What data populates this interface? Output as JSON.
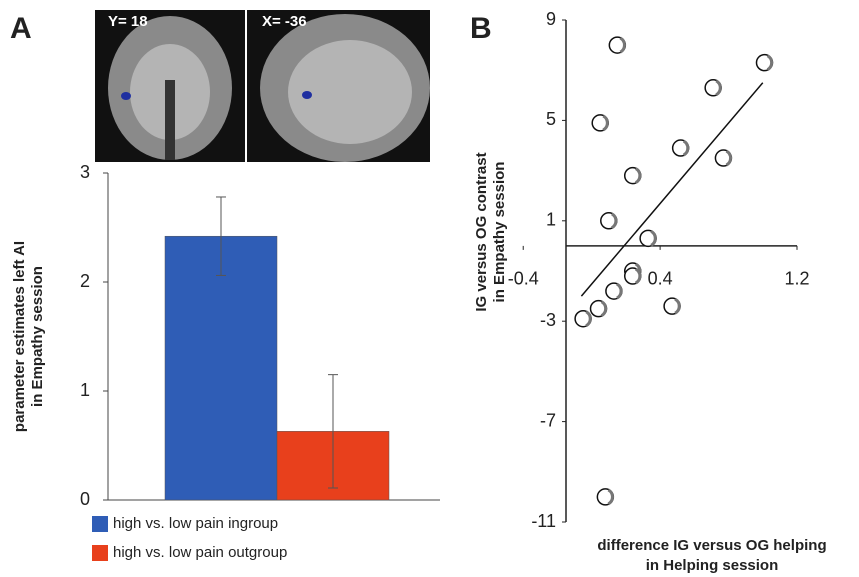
{
  "chart_data": [
    {
      "type": "bar",
      "panel_label": "A",
      "images": [
        {
          "label": "Y= 18"
        },
        {
          "label": "X= -36"
        }
      ],
      "ylabel": [
        "parameter estimates left AI",
        "in Empathy session"
      ],
      "categories": [
        null
      ],
      "series": [
        {
          "name": "high vs. low pain ingroup",
          "color": "#2f5db6",
          "values": [
            2.42
          ],
          "errors": [
            0.36
          ]
        },
        {
          "name": "high vs. low pain outgroup",
          "color": "#e8401c",
          "values": [
            0.63
          ],
          "errors": [
            0.52
          ]
        }
      ],
      "ylim": [
        0,
        3
      ],
      "yticks": [
        0,
        1,
        2,
        3
      ]
    },
    {
      "type": "scatter",
      "panel_label": "B",
      "xlabel": [
        "difference IG versus OG helping",
        "in Helping session"
      ],
      "ylabel": [
        "IG versus OG contrast",
        "in Empathy session"
      ],
      "x": [
        0.15,
        0.05,
        0.71,
        1.01,
        0.52,
        0.77,
        0.24,
        0.1,
        0.33,
        0.24,
        0.24,
        0.13,
        0.04,
        -0.05,
        0.47,
        0.08
      ],
      "y": [
        8.0,
        4.9,
        6.3,
        7.3,
        3.9,
        3.5,
        2.8,
        1.0,
        0.3,
        -1.0,
        -1.2,
        -1.8,
        -2.5,
        -2.9,
        -2.4,
        -10.0
      ],
      "trendline": {
        "x": [
          -0.06,
          1.0
        ],
        "y": [
          -2.0,
          6.5
        ]
      },
      "xlim": [
        -0.15,
        1.2
      ],
      "xticks": [
        -0.4,
        0.4,
        1.2
      ],
      "ylim": [
        -11,
        9
      ],
      "yticks": [
        -11,
        -7,
        -3,
        1,
        5,
        9
      ]
    }
  ]
}
